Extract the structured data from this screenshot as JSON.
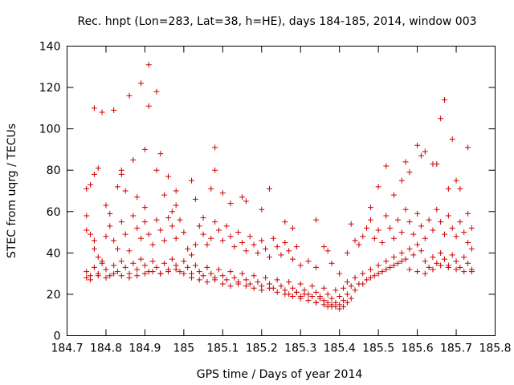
{
  "chart_data": {
    "type": "scatter",
    "title": "Rec. hnpt (Lon=283, Lat=38, h=HE), days 184-185, 2014, window 003",
    "xlabel": "GPS time / Days of year 2014",
    "ylabel": "STEC from uqrg / TECUs",
    "xlim": [
      184.7,
      185.8
    ],
    "ylim": [
      0,
      140
    ],
    "x_ticks": [
      "184.7",
      "184.8",
      "184.9",
      "185",
      "185.1",
      "185.2",
      "185.3",
      "185.4",
      "185.5",
      "185.6",
      "185.7",
      "185.8"
    ],
    "y_ticks": [
      "0",
      "20",
      "40",
      "60",
      "80",
      "100",
      "120",
      "140"
    ],
    "marker": "plus",
    "color": "#cc0000",
    "grid": false,
    "points": [
      [
        184.75,
        71
      ],
      [
        184.76,
        73
      ],
      [
        184.77,
        78
      ],
      [
        184.77,
        110
      ],
      [
        184.79,
        108
      ],
      [
        184.78,
        81
      ],
      [
        184.8,
        63
      ],
      [
        184.81,
        59
      ],
      [
        184.82,
        109
      ],
      [
        184.83,
        72
      ],
      [
        184.84,
        80
      ],
      [
        184.84,
        78
      ],
      [
        184.85,
        70
      ],
      [
        184.86,
        116
      ],
      [
        184.87,
        85
      ],
      [
        184.88,
        67
      ],
      [
        184.89,
        122
      ],
      [
        184.9,
        90
      ],
      [
        184.9,
        62
      ],
      [
        184.91,
        131
      ],
      [
        184.91,
        111
      ],
      [
        184.93,
        118
      ],
      [
        184.93,
        80
      ],
      [
        184.94,
        88
      ],
      [
        184.95,
        68
      ],
      [
        184.96,
        77
      ],
      [
        184.97,
        60
      ],
      [
        184.98,
        70
      ],
      [
        184.98,
        63
      ],
      [
        185.02,
        75
      ],
      [
        185.03,
        66
      ],
      [
        185.05,
        57
      ],
      [
        185.07,
        71
      ],
      [
        185.08,
        91
      ],
      [
        185.08,
        80
      ],
      [
        185.1,
        69
      ],
      [
        185.12,
        64
      ],
      [
        185.15,
        67
      ],
      [
        185.16,
        65
      ],
      [
        185.2,
        61
      ],
      [
        185.22,
        71
      ],
      [
        185.26,
        55
      ],
      [
        185.28,
        52
      ],
      [
        185.34,
        56
      ],
      [
        185.48,
        62
      ],
      [
        185.5,
        72
      ],
      [
        185.52,
        82
      ],
      [
        185.54,
        68
      ],
      [
        185.56,
        75
      ],
      [
        185.57,
        84
      ],
      [
        185.58,
        79
      ],
      [
        185.6,
        92
      ],
      [
        185.61,
        87
      ],
      [
        185.62,
        89
      ],
      [
        185.64,
        83
      ],
      [
        185.65,
        83
      ],
      [
        185.66,
        105
      ],
      [
        185.67,
        114
      ],
      [
        185.68,
        71
      ],
      [
        185.69,
        95
      ],
      [
        185.7,
        75
      ],
      [
        185.71,
        71
      ],
      [
        185.73,
        91
      ],
      [
        185.73,
        59
      ],
      [
        184.75,
        58
      ],
      [
        184.75,
        51
      ],
      [
        184.76,
        49
      ],
      [
        184.77,
        46
      ],
      [
        184.77,
        42
      ],
      [
        184.78,
        38
      ],
      [
        184.79,
        36
      ],
      [
        184.8,
        48
      ],
      [
        184.81,
        53
      ],
      [
        184.82,
        46
      ],
      [
        184.83,
        42
      ],
      [
        184.84,
        55
      ],
      [
        184.85,
        49
      ],
      [
        184.86,
        41
      ],
      [
        184.87,
        58
      ],
      [
        184.88,
        52
      ],
      [
        184.89,
        47
      ],
      [
        184.9,
        55
      ],
      [
        184.91,
        49
      ],
      [
        184.92,
        44
      ],
      [
        184.93,
        56
      ],
      [
        184.94,
        51
      ],
      [
        184.95,
        46
      ],
      [
        184.96,
        57
      ],
      [
        184.97,
        53
      ],
      [
        184.98,
        47
      ],
      [
        184.99,
        56
      ],
      [
        185.0,
        50
      ],
      [
        185.01,
        42
      ],
      [
        185.02,
        39
      ],
      [
        185.03,
        44
      ],
      [
        185.04,
        53
      ],
      [
        185.05,
        49
      ],
      [
        185.06,
        44
      ],
      [
        185.07,
        47
      ],
      [
        185.08,
        55
      ],
      [
        185.09,
        51
      ],
      [
        185.1,
        46
      ],
      [
        185.11,
        53
      ],
      [
        185.12,
        48
      ],
      [
        185.13,
        43
      ],
      [
        185.14,
        50
      ],
      [
        185.15,
        45
      ],
      [
        185.16,
        41
      ],
      [
        185.17,
        48
      ],
      [
        185.18,
        44
      ],
      [
        185.19,
        40
      ],
      [
        185.2,
        46
      ],
      [
        185.21,
        42
      ],
      [
        185.22,
        38
      ],
      [
        185.23,
        47
      ],
      [
        185.24,
        43
      ],
      [
        185.25,
        39
      ],
      [
        185.26,
        45
      ],
      [
        185.27,
        41
      ],
      [
        185.28,
        37
      ],
      [
        185.29,
        43
      ],
      [
        185.3,
        34
      ],
      [
        185.32,
        36
      ],
      [
        185.34,
        33
      ],
      [
        185.36,
        43
      ],
      [
        185.37,
        41
      ],
      [
        185.38,
        35
      ],
      [
        185.4,
        30
      ],
      [
        185.42,
        40
      ],
      [
        185.43,
        54
      ],
      [
        185.44,
        46
      ],
      [
        185.45,
        44
      ],
      [
        185.46,
        48
      ],
      [
        185.47,
        52
      ],
      [
        185.48,
        56
      ],
      [
        185.49,
        47
      ],
      [
        185.5,
        51
      ],
      [
        185.51,
        45
      ],
      [
        185.52,
        58
      ],
      [
        185.53,
        52
      ],
      [
        185.54,
        47
      ],
      [
        185.55,
        56
      ],
      [
        185.56,
        50
      ],
      [
        185.57,
        61
      ],
      [
        185.58,
        55
      ],
      [
        185.59,
        49
      ],
      [
        185.6,
        59
      ],
      [
        185.61,
        53
      ],
      [
        185.62,
        47
      ],
      [
        185.63,
        56
      ],
      [
        185.64,
        51
      ],
      [
        185.65,
        61
      ],
      [
        185.66,
        55
      ],
      [
        185.67,
        49
      ],
      [
        185.68,
        58
      ],
      [
        185.69,
        52
      ],
      [
        185.7,
        48
      ],
      [
        185.71,
        55
      ],
      [
        185.72,
        50
      ],
      [
        185.73,
        45
      ],
      [
        185.74,
        52
      ],
      [
        185.74,
        42
      ],
      [
        184.75,
        31
      ],
      [
        184.76,
        29
      ],
      [
        184.77,
        33
      ],
      [
        184.78,
        30
      ],
      [
        184.79,
        35
      ],
      [
        184.8,
        32
      ],
      [
        184.81,
        29
      ],
      [
        184.82,
        34
      ],
      [
        184.83,
        31
      ],
      [
        184.84,
        36
      ],
      [
        184.85,
        33
      ],
      [
        184.86,
        30
      ],
      [
        184.87,
        35
      ],
      [
        184.88,
        32
      ],
      [
        184.89,
        37
      ],
      [
        184.9,
        34
      ],
      [
        184.91,
        31
      ],
      [
        184.92,
        36
      ],
      [
        184.93,
        33
      ],
      [
        184.94,
        30
      ],
      [
        184.95,
        35
      ],
      [
        184.96,
        32
      ],
      [
        184.97,
        37
      ],
      [
        184.98,
        34
      ],
      [
        184.99,
        31
      ],
      [
        185.0,
        36
      ],
      [
        185.01,
        33
      ],
      [
        185.02,
        30
      ],
      [
        185.03,
        34
      ],
      [
        185.04,
        31
      ],
      [
        185.05,
        29
      ],
      [
        185.06,
        33
      ],
      [
        185.07,
        30
      ],
      [
        185.08,
        28
      ],
      [
        185.09,
        32
      ],
      [
        185.1,
        29
      ],
      [
        185.11,
        27
      ],
      [
        185.12,
        31
      ],
      [
        185.13,
        28
      ],
      [
        185.14,
        26
      ],
      [
        185.15,
        30
      ],
      [
        185.16,
        27
      ],
      [
        185.17,
        25
      ],
      [
        185.18,
        29
      ],
      [
        185.19,
        26
      ],
      [
        185.2,
        24
      ],
      [
        185.21,
        28
      ],
      [
        185.22,
        25
      ],
      [
        185.23,
        23
      ],
      [
        185.24,
        27
      ],
      [
        185.25,
        24
      ],
      [
        185.26,
        22
      ],
      [
        185.27,
        26
      ],
      [
        185.28,
        23
      ],
      [
        185.29,
        21
      ],
      [
        185.3,
        25
      ],
      [
        185.31,
        22
      ],
      [
        185.32,
        20
      ],
      [
        185.33,
        24
      ],
      [
        185.34,
        21
      ],
      [
        185.35,
        19
      ],
      [
        185.36,
        23
      ],
      [
        185.37,
        20
      ],
      [
        185.38,
        18
      ],
      [
        185.39,
        22
      ],
      [
        185.4,
        19
      ],
      [
        185.41,
        23
      ],
      [
        185.42,
        26
      ],
      [
        185.43,
        24
      ],
      [
        185.44,
        28
      ],
      [
        185.45,
        25
      ],
      [
        185.46,
        30
      ],
      [
        185.47,
        27
      ],
      [
        185.48,
        32
      ],
      [
        185.49,
        29
      ],
      [
        185.5,
        34
      ],
      [
        185.51,
        31
      ],
      [
        185.52,
        36
      ],
      [
        185.53,
        33
      ],
      [
        185.54,
        38
      ],
      [
        185.55,
        35
      ],
      [
        185.56,
        40
      ],
      [
        185.57,
        37
      ],
      [
        185.58,
        42
      ],
      [
        185.59,
        39
      ],
      [
        185.6,
        44
      ],
      [
        185.61,
        41
      ],
      [
        185.62,
        36
      ],
      [
        185.63,
        33
      ],
      [
        185.64,
        38
      ],
      [
        185.65,
        35
      ],
      [
        185.66,
        40
      ],
      [
        185.67,
        37
      ],
      [
        185.68,
        34
      ],
      [
        185.69,
        39
      ],
      [
        185.7,
        36
      ],
      [
        185.71,
        33
      ],
      [
        185.72,
        38
      ],
      [
        185.73,
        35
      ],
      [
        185.74,
        32
      ],
      [
        184.75,
        28
      ],
      [
        184.76,
        27
      ],
      [
        184.78,
        29
      ],
      [
        184.8,
        28
      ],
      [
        184.82,
        30
      ],
      [
        184.84,
        29
      ],
      [
        184.86,
        28
      ],
      [
        184.88,
        29
      ],
      [
        184.9,
        30
      ],
      [
        184.92,
        31
      ],
      [
        184.94,
        30
      ],
      [
        184.96,
        31
      ],
      [
        184.98,
        32
      ],
      [
        185.0,
        30
      ],
      [
        185.02,
        28
      ],
      [
        185.04,
        27
      ],
      [
        185.06,
        26
      ],
      [
        185.08,
        27
      ],
      [
        185.1,
        25
      ],
      [
        185.12,
        24
      ],
      [
        185.14,
        25
      ],
      [
        185.16,
        24
      ],
      [
        185.18,
        23
      ],
      [
        185.2,
        22
      ],
      [
        185.22,
        23
      ],
      [
        185.24,
        21
      ],
      [
        185.26,
        20
      ],
      [
        185.28,
        19
      ],
      [
        185.3,
        18
      ],
      [
        185.32,
        17
      ],
      [
        185.34,
        16
      ],
      [
        185.36,
        15
      ],
      [
        185.38,
        14
      ],
      [
        185.39,
        16
      ],
      [
        185.4,
        15
      ],
      [
        185.41,
        17
      ],
      [
        185.42,
        20
      ],
      [
        185.44,
        22
      ],
      [
        185.46,
        25
      ],
      [
        185.48,
        28
      ],
      [
        185.5,
        30
      ],
      [
        185.52,
        32
      ],
      [
        185.54,
        34
      ],
      [
        185.56,
        36
      ],
      [
        185.58,
        32
      ],
      [
        185.6,
        31
      ],
      [
        185.62,
        30
      ],
      [
        185.64,
        32
      ],
      [
        185.66,
        34
      ],
      [
        185.68,
        33
      ],
      [
        185.7,
        32
      ],
      [
        185.72,
        31
      ],
      [
        185.74,
        31
      ],
      [
        185.36,
        17
      ],
      [
        185.37,
        16
      ],
      [
        185.38,
        15
      ],
      [
        185.39,
        14
      ],
      [
        185.35,
        18
      ],
      [
        185.33,
        19
      ],
      [
        185.31,
        20
      ],
      [
        185.29,
        21
      ],
      [
        185.41,
        14
      ],
      [
        185.42,
        16
      ],
      [
        185.43,
        18
      ],
      [
        185.4,
        13
      ],
      [
        185.37,
        14
      ],
      [
        185.34,
        16
      ],
      [
        185.3,
        19
      ],
      [
        185.27,
        20
      ]
    ]
  }
}
